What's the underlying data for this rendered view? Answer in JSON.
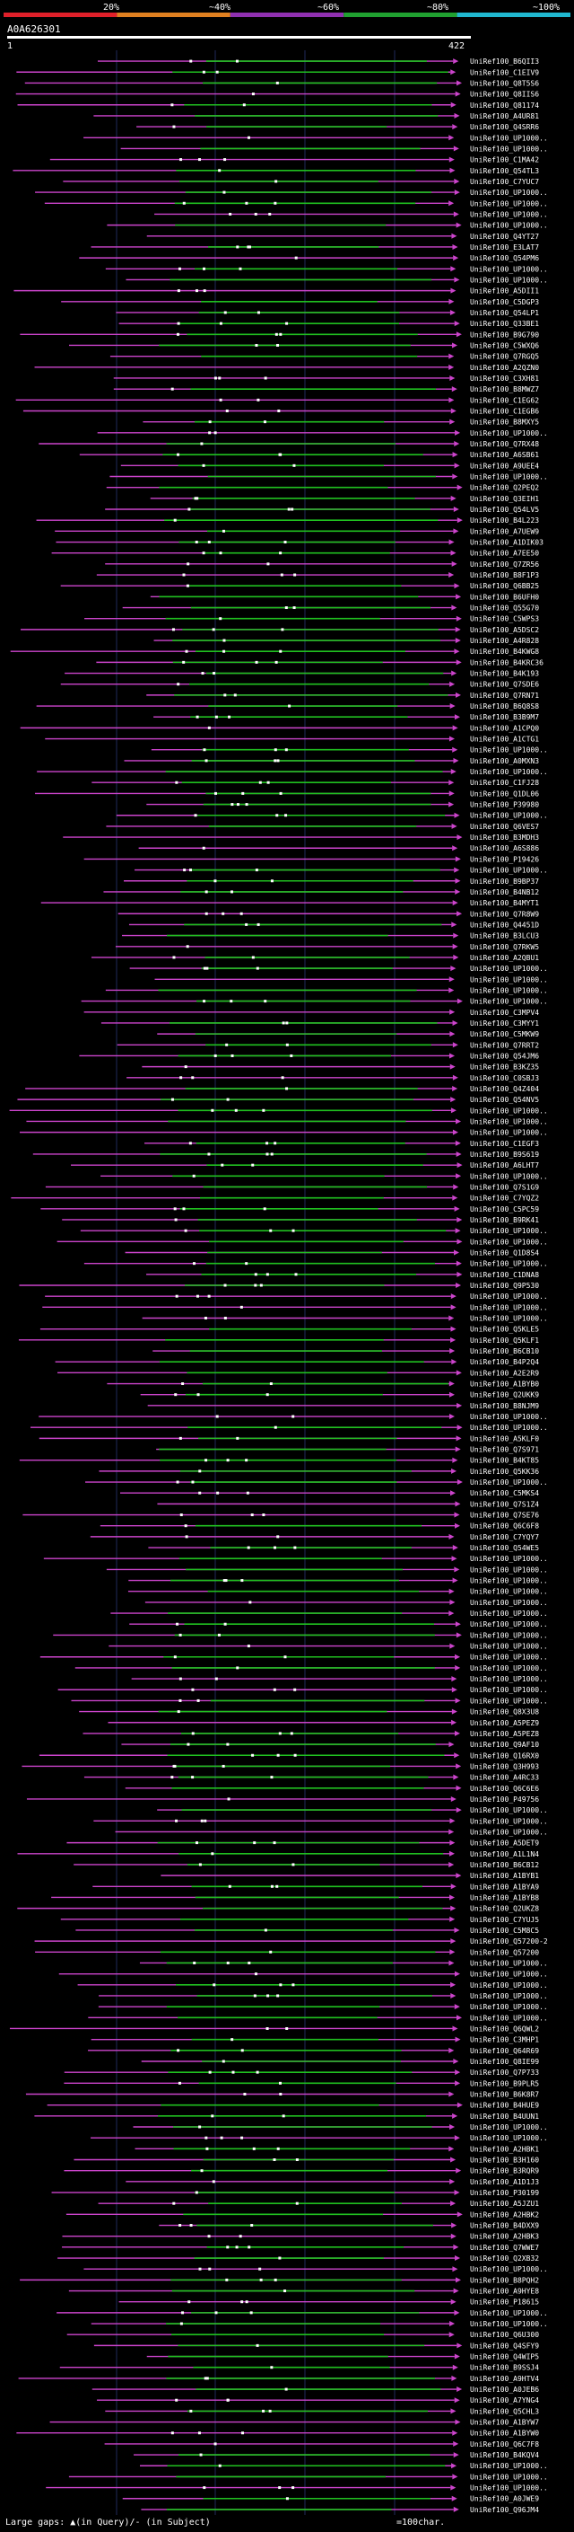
{
  "chart_data": {
    "type": "blast-alignment-overview",
    "title": "A0A626301",
    "query_start_label": "1",
    "query_end_label": "422",
    "query_length": 422,
    "identity_scale": {
      "labels": [
        "20%",
        "~40%",
        "~60%",
        "~80%",
        "~100%"
      ],
      "colors": [
        "#e0202a",
        "#e08020",
        "#9030b0",
        "#20a030",
        "#20b8d0"
      ]
    },
    "hit_colors": {
      "match": "#20c020",
      "gap": "#cc44cc",
      "insert": "#ffffff"
    },
    "hits": [
      "UniRef100_B6QII3",
      "UniRef100_C1EIV9",
      "UniRef100_Q8T5S6",
      "UniRef100_Q8IIS6",
      "UniRef100_Q81174",
      "UniRef100_A4UR81",
      "UniRef100_Q4SRR6",
      "UniRef100_UP1000..",
      "UniRef100_UP1000..",
      "UniRef100_C1MA42",
      "UniRef100_Q54TL3",
      "UniRef100_C7YUC7",
      "UniRef100_UP1000..",
      "UniRef100_UP1000..",
      "UniRef100_UP1000..",
      "UniRef100_UP1000..",
      "UniRef100_Q4YT27",
      "UniRef100_E3LAT7",
      "UniRef100_Q54PM6",
      "UniRef100_UP1000..",
      "UniRef100_UP1000..",
      "UniRef100_A5DII1",
      "UniRef100_C5DGP3",
      "UniRef100_Q54LP1",
      "UniRef100_Q33BE1",
      "UniRef100_B9G790",
      "UniRef100_C5WXQ6",
      "UniRef100_Q7RGQ5",
      "UniRef100_A2QZN0",
      "UniRef100_C3XH81",
      "UniRef100_B8MWZ7",
      "UniRef100_C1EG62",
      "UniRef100_C1EGB6",
      "UniRef100_B8MXY5",
      "UniRef100_UP1000..",
      "UniRef100_Q7RX48",
      "UniRef100_A6SB61",
      "UniRef100_A9UEE4",
      "UniRef100_UP1000..",
      "UniRef100_Q2PEQ2",
      "UniRef100_Q3EIH1",
      "UniRef100_Q54LV5",
      "UniRef100_B4L223",
      "UniRef100_A7UEW9",
      "UniRef100_A1DIK03",
      "UniRef100_A7EE50",
      "UniRef100_Q7ZR56",
      "UniRef100_B8F1P3",
      "UniRef100_Q6BB25",
      "UniRef100_B6UFH0",
      "UniRef100_Q55G70",
      "UniRef100_C5WPS3",
      "UniRef100_A5DSC2",
      "UniRef100_A4R828",
      "UniRef100_B4KWG8",
      "UniRef100_B4KRC36",
      "UniRef100_B4K193",
      "UniRef100_Q7SDE6",
      "UniRef100_Q7RN71",
      "UniRef100_B6Q8S8",
      "UniRef100_B3B9M7",
      "UniRef100_A1CPQ0",
      "UniRef100_A1CTG1",
      "UniRef100_UP1000..",
      "UniRef100_A0MXN3",
      "UniRef100_UP1000..",
      "UniRef100_C1FJ28",
      "UniRef100_Q1DL06",
      "UniRef100_P39980",
      "UniRef100_UP1000..",
      "UniRef100_Q6VES7",
      "UniRef100_B3MDH3",
      "UniRef100_A6S886",
      "UniRef100_P19426",
      "UniRef100_UP1000..",
      "UniRef100_B9BP37",
      "UniRef100_B4NB12",
      "UniRef100_B4MYT1",
      "UniRef100_Q7R8W9",
      "UniRef100_Q4451D",
      "UniRef100_B3LCU3",
      "UniRef100_Q7RKW5",
      "UniRef100_A2QBU1",
      "UniRef100_UP1000..",
      "UniRef100_UP1000..",
      "UniRef100_UP1000..",
      "UniRef100_UP1000..",
      "UniRef100_C3MPV4",
      "UniRef100_C3MYY1",
      "UniRef100_C5MKW9",
      "UniRef100_Q7RRT2",
      "UniRef100_Q54JM6",
      "UniRef100_B3KZ35",
      "UniRef100_C0SBJ3",
      "UniRef100_Q4Z404",
      "UniRef100_Q54NV5",
      "UniRef100_UP1000..",
      "UniRef100_UP1000..",
      "UniRef100_UP1000..",
      "UniRef100_C1EGF3",
      "UniRef100_B9S619",
      "UniRef100_A6LHT7",
      "UniRef100_UP1000..",
      "UniRef100_Q7S1G9",
      "UniRef100_C7YQZ2",
      "UniRef100_C5PC59",
      "UniRef100_B9RK41",
      "UniRef100_UP1000..",
      "UniRef100_UP1000..",
      "UniRef100_Q1D8S4",
      "UniRef100_UP1000..",
      "UniRef100_C1DNA8",
      "UniRef100_Q9P530",
      "UniRef100_UP1000..",
      "UniRef100_UP1000..",
      "UniRef100_UP1000..",
      "UniRef100_Q5KLE5",
      "UniRef100_Q5KLF1",
      "UniRef100_B6CB10",
      "UniRef100_B4P2Q4",
      "UniRef100_A2E2R9",
      "UniRef100_A1BYB0",
      "UniRef100_Q2UKK9",
      "UniRef100_B8NJM9",
      "UniRef100_UP1000..",
      "UniRef100_UP1000..",
      "UniRef100_A5KLF0",
      "UniRef100_Q7S971",
      "UniRef100_B4KT85",
      "UniRef100_Q5KK36",
      "UniRef100_UP1000..",
      "UniRef100_C5MKS4",
      "UniRef100_Q7S1Z4",
      "UniRef100_Q7SE76",
      "UniRef100_Q6C6F8",
      "UniRef100_C7YQY7",
      "UniRef100_Q54WE5",
      "UniRef100_UP1000..",
      "UniRef100_UP1000..",
      "UniRef100_UP1000..",
      "UniRef100_UP1000..",
      "UniRef100_UP1000..",
      "UniRef100_UP1000..",
      "UniRef100_UP1000..",
      "UniRef100_UP1000..",
      "UniRef100_UP1000..",
      "UniRef100_UP1000..",
      "UniRef100_UP1000..",
      "UniRef100_UP1000..",
      "UniRef100_UP1000..",
      "UniRef100_UP1000..",
      "UniRef100_Q8X3U8",
      "UniRef100_A5PEZ9",
      "UniRef100_A5PEZ8",
      "UniRef100_Q9AF10",
      "UniRef100_Q16RX0",
      "UniRef100_Q3H993",
      "UniRef100_A4RC33",
      "UniRef100_Q6C6E6",
      "UniRef100_P49756",
      "UniRef100_UP1000..",
      "UniRef100_UP1000..",
      "UniRef100_UP1000..",
      "UniRef100_A5DET9",
      "UniRef100_A1L1N4",
      "UniRef100_B6CB12",
      "UniRef100_A1BYB1",
      "UniRef100_A1BYA9",
      "UniRef100_A1BYB8",
      "UniRef100_Q2UKZ8",
      "UniRef100_C7YUJ5",
      "UniRef100_C5M8C5",
      "UniRef100_Q57200-2",
      "UniRef100_Q57200",
      "UniRef100_UP1000..",
      "UniRef100_UP1000..",
      "UniRef100_UP1000..",
      "UniRef100_UP1000..",
      "UniRef100_UP1000..",
      "UniRef100_UP1000..",
      "UniRef100_Q6QWL2",
      "UniRef100_C3MHP1",
      "UniRef100_Q64R69",
      "UniRef100_Q8IE99",
      "UniRef100_Q7P733",
      "UniRef100_B9PLR5",
      "UniRef100_B6K8R7",
      "UniRef100_B4HUE9",
      "UniRef100_B4UUN1",
      "UniRef100_UP1000..",
      "UniRef100_UP1000..",
      "UniRef100_A2HBK1",
      "UniRef100_B3H160",
      "UniRef100_B3RQR9",
      "UniRef100_A1D1J3",
      "UniRef100_P30199",
      "UniRef100_A5JZU1",
      "UniRef100_A2HBK2",
      "UniRef100_B4DXX9",
      "UniRef100_A2HBK3",
      "UniRef100_Q7WWE7",
      "UniRef100_Q2XB32",
      "UniRef100_UP1000..",
      "UniRef100_B8PQH2",
      "UniRef100_A9HYE8",
      "UniRef100_P18615",
      "UniRef100_UP1000..",
      "UniRef100_UP1000..",
      "UniRef100_Q6U300",
      "UniRef100_Q4SFY9",
      "UniRef100_Q4WIP5",
      "UniRef100_B9SSJ4",
      "UniRef100_A9HTV4",
      "UniRef100_A0JEB6",
      "UniRef100_A7YNG4",
      "UniRef100_Q5CHL3",
      "UniRef100_A1BYW7",
      "UniRef100_A1BYW0",
      "UniRef100_Q6C7F8",
      "UniRef100_B4KQV4",
      "UniRef100_UP1000..",
      "UniRef100_UP1000..",
      "UniRef100_UP1000..",
      "UniRef100_A0JWE9",
      "UniRef100_Q96JM4"
    ]
  },
  "legend": {
    "gap_text": "Large gaps: ▲(in Query)/- (in Subject)",
    "scale_text": "=100char."
  }
}
